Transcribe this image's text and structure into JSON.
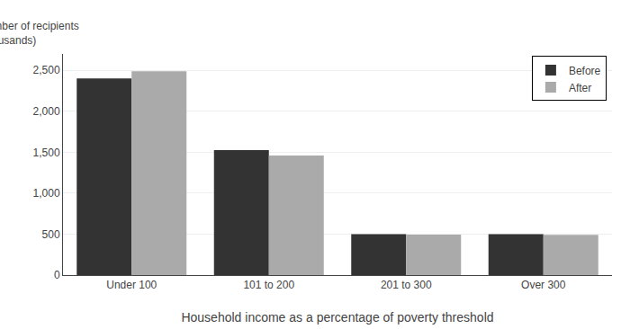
{
  "chart_data": {
    "type": "bar",
    "categories": [
      "Under 100",
      "101 to 200",
      "201 to 300",
      "Over 300"
    ],
    "series": [
      {
        "name": "Before",
        "color": "#333333",
        "values": [
          2400,
          1525,
          500,
          500
        ]
      },
      {
        "name": "After",
        "color": "#aaaaaa",
        "values": [
          2490,
          1460,
          495,
          490
        ]
      }
    ],
    "xlabel": "Household income as a percentage of poverty threshold",
    "ylabel": [
      "Number of recipients",
      "(thousands)"
    ],
    "ylim": [
      0,
      2700
    ],
    "yticks": [
      0,
      500,
      {
        "value": 1000,
        "label": "1,000"
      },
      {
        "value": 1500,
        "label": "1,500"
      },
      {
        "value": 2000,
        "label": "2,000"
      },
      {
        "value": 2500,
        "label": "2,500"
      }
    ],
    "grid": true,
    "legend": "upper right"
  }
}
